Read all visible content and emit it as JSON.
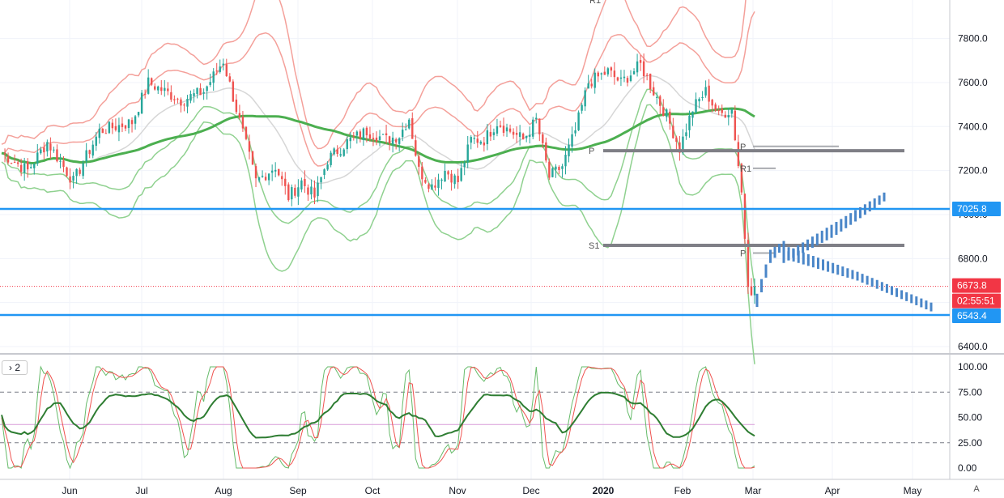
{
  "chart_data": [
    {
      "type": "candlestick",
      "title": "",
      "x_labels": [
        "Jun",
        "Jul",
        "Aug",
        "Sep",
        "Oct",
        "Nov",
        "Dec",
        "2020",
        "Feb",
        "Mar",
        "Apr",
        "May"
      ],
      "y_ticks": [
        "6400.0",
        "6600.0",
        "6800.0",
        "7000.0",
        "7200.0",
        "7400.0",
        "7600.0",
        "7800.0"
      ],
      "ylim": [
        6360,
        7960
      ],
      "price_tags": {
        "upper_line": "7025.8",
        "last_price": "6673.8",
        "countdown": "02:55:51",
        "lower_line": "6543.4"
      },
      "horizontal_lines": [
        7025.8,
        6543.4
      ],
      "pivot_levels": [
        {
          "label": "P",
          "value": 7290
        },
        {
          "label": "S1",
          "value": 6860
        },
        {
          "label": "R1",
          "value": 7975
        },
        {
          "label": "R1",
          "value": 7210
        },
        {
          "label": "P",
          "value": 7310
        },
        {
          "label": "P",
          "value": 6825
        }
      ],
      "key_closes": [
        {
          "date": "Jun",
          "close": 7280
        },
        {
          "date": "Jul",
          "close": 7600
        },
        {
          "date": "Aug",
          "close": 7570
        },
        {
          "date": "Sep",
          "close": 7270
        },
        {
          "date": "Oct",
          "close": 7400
        },
        {
          "date": "Nov",
          "close": 7300
        },
        {
          "date": "Dec",
          "close": 7340
        },
        {
          "date": "2020",
          "close": 7590
        },
        {
          "date": "Feb",
          "close": 7440
        },
        {
          "date": "Mar",
          "close": 6673.8
        }
      ],
      "projection_paths": [
        {
          "name": "",
          "points": [
            [
              6560,
              6500
            ],
            [
              6700,
              6860
            ],
            [
              6820,
              6700
            ],
            [
              7060,
              7080
            ]
          ]
        },
        {
          "name": "",
          "points": [
            [
              6700,
              6860
            ],
            [
              6600,
              6560
            ],
            [
              6520,
              6530
            ]
          ]
        }
      ],
      "colors": {
        "bull": "#26a69a",
        "bear": "#ef5350",
        "ma_red": "#f05252",
        "ma_green": "#4caf50",
        "band_red": "#f4a09a",
        "band_green": "#8fd18f",
        "band_gray": "#d6d6d6",
        "blue_line": "#2196f3",
        "pivot_gray": "#7f7f86",
        "projection": "#4a86c8",
        "last_price": "#f23645"
      }
    },
    {
      "type": "line",
      "pane_label": "2",
      "y_ticks": [
        "0.00",
        "25.00",
        "50.00",
        "75.00",
        "100.00"
      ],
      "ylim": [
        0,
        100
      ],
      "dashed_levels": [
        75,
        25
      ],
      "midline": 43,
      "series": [
        {
          "name": "",
          "color": "#2e7d32"
        },
        {
          "name": "",
          "color": "#ef5350"
        }
      ]
    }
  ],
  "ui": {
    "auto_label": "A",
    "pane_toggle": "›"
  }
}
